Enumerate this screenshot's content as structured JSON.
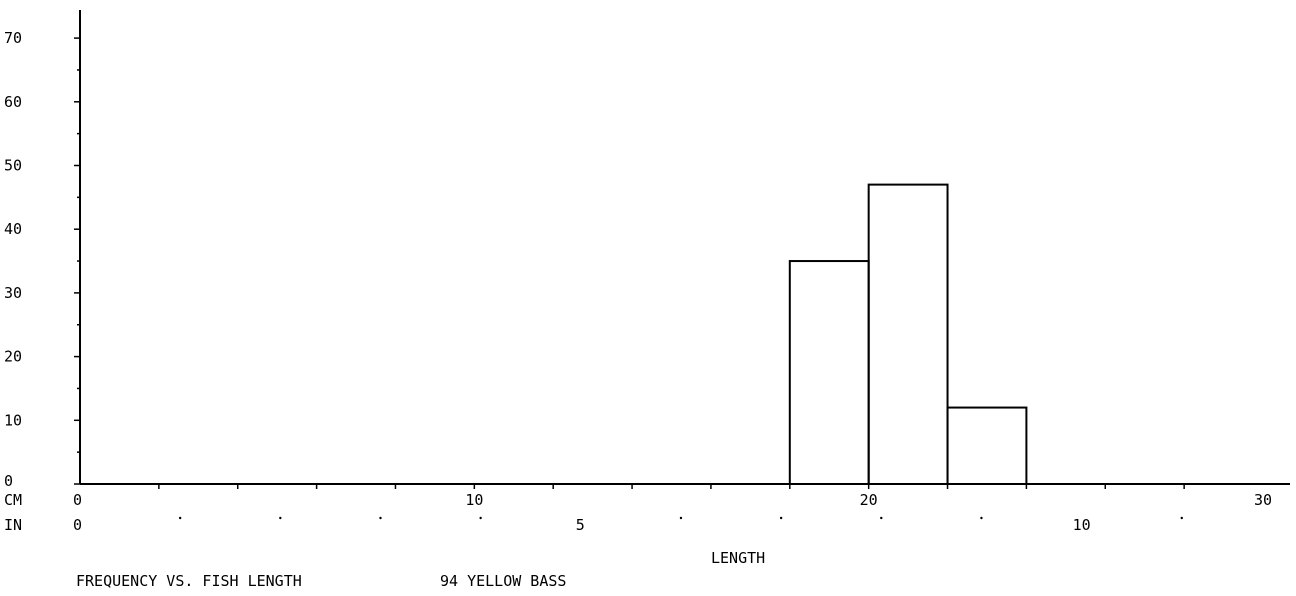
{
  "chart_data": {
    "type": "bar",
    "histogram": true,
    "title": "FREQUENCY VS. FISH LENGTH",
    "subtitle": "94 YELLOW BASS",
    "xlabel": "LENGTH",
    "ylabel": "",
    "x_unit_primary": "CM",
    "x_unit_secondary": "IN",
    "xlim_cm": [
      0,
      30
    ],
    "ylim": [
      0,
      70
    ],
    "y_ticks": [
      0,
      10,
      20,
      30,
      40,
      50,
      60,
      70
    ],
    "x_ticks_cm": [
      0,
      10,
      20,
      30
    ],
    "x_ticks_in": [
      0,
      5,
      10
    ],
    "bins": [
      {
        "start": 18,
        "end": 20,
        "value": 35
      },
      {
        "start": 20,
        "end": 22,
        "value": 47
      },
      {
        "start": 22,
        "end": 24,
        "value": 12
      }
    ],
    "grid": false,
    "legend": "none"
  },
  "colors": {
    "background": "#ffffff",
    "ink": "#000000"
  }
}
